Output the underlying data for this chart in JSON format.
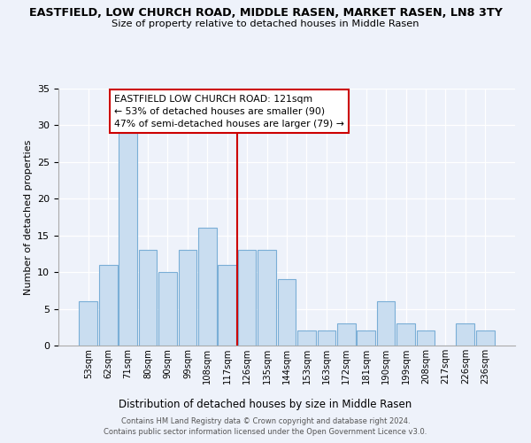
{
  "title": "EASTFIELD, LOW CHURCH ROAD, MIDDLE RASEN, MARKET RASEN, LN8 3TY",
  "subtitle": "Size of property relative to detached houses in Middle Rasen",
  "xlabel": "Distribution of detached houses by size in Middle Rasen",
  "ylabel": "Number of detached properties",
  "bar_labels": [
    "53sqm",
    "62sqm",
    "71sqm",
    "80sqm",
    "90sqm",
    "99sqm",
    "108sqm",
    "117sqm",
    "126sqm",
    "135sqm",
    "144sqm",
    "153sqm",
    "163sqm",
    "172sqm",
    "181sqm",
    "190sqm",
    "199sqm",
    "208sqm",
    "217sqm",
    "226sqm",
    "236sqm"
  ],
  "bar_values": [
    6,
    11,
    29,
    13,
    10,
    13,
    16,
    11,
    13,
    13,
    9,
    2,
    2,
    3,
    2,
    6,
    3,
    2,
    0,
    3,
    2
  ],
  "bar_color": "#c9ddf0",
  "bar_edgecolor": "#7aaed6",
  "vline_x": 7.5,
  "vline_color": "#cc0000",
  "annotation_title": "EASTFIELD LOW CHURCH ROAD: 121sqm",
  "annotation_line1": "← 53% of detached houses are smaller (90)",
  "annotation_line2": "47% of semi-detached houses are larger (79) →",
  "annotation_box_facecolor": "#ffffff",
  "annotation_box_edgecolor": "#cc0000",
  "ylim": [
    0,
    35
  ],
  "yticks": [
    0,
    5,
    10,
    15,
    20,
    25,
    30,
    35
  ],
  "footer1": "Contains HM Land Registry data © Crown copyright and database right 2024.",
  "footer2": "Contains public sector information licensed under the Open Government Licence v3.0.",
  "background_color": "#eef2fa"
}
